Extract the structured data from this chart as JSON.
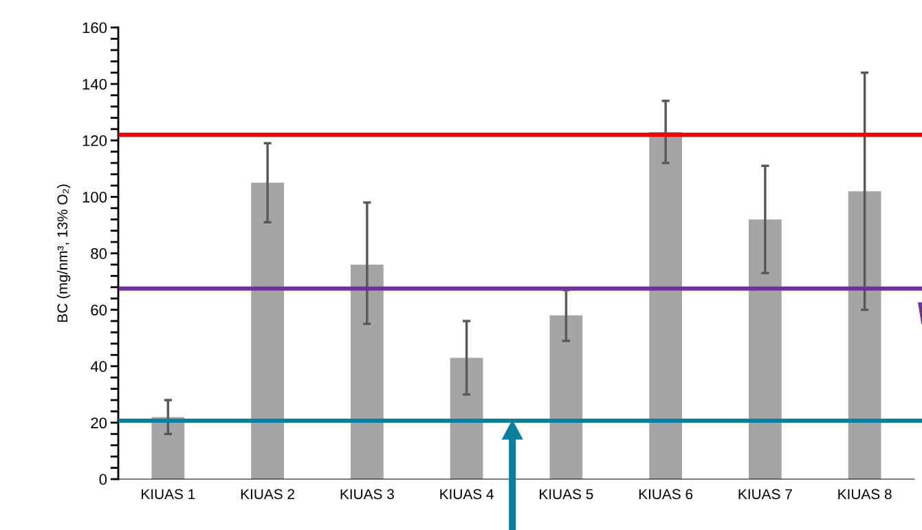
{
  "chart_data": {
    "type": "bar",
    "ylabel": "BC (mg/nm³, 13% O₂)",
    "categories": [
      "KIUAS 1",
      "KIUAS 2",
      "KIUAS 3",
      "KIUAS 4",
      "KIUAS 5",
      "KIUAS 6",
      "KIUAS 7",
      "KIUAS 8"
    ],
    "values": [
      22,
      105,
      76,
      43,
      58,
      123,
      92,
      102
    ],
    "errors": [
      [
        16,
        28
      ],
      [
        91,
        119
      ],
      [
        55,
        98
      ],
      [
        30,
        56
      ],
      [
        49,
        67
      ],
      [
        112,
        134
      ],
      [
        73,
        111
      ],
      [
        60,
        144
      ]
    ],
    "color": "#a5a5a5",
    "ylim": [
      0,
      160
    ],
    "yticks": [
      0,
      20,
      40,
      60,
      80,
      100,
      120,
      140,
      160
    ],
    "grid": false,
    "ref_lines": [
      {
        "axis": "y",
        "value": 122,
        "color": "#ff0000"
      },
      {
        "axis": "y",
        "value": 67.5,
        "color": "#7030a0"
      },
      {
        "axis": "y",
        "value": 20.7,
        "color": "#0a7f9f"
      }
    ]
  }
}
